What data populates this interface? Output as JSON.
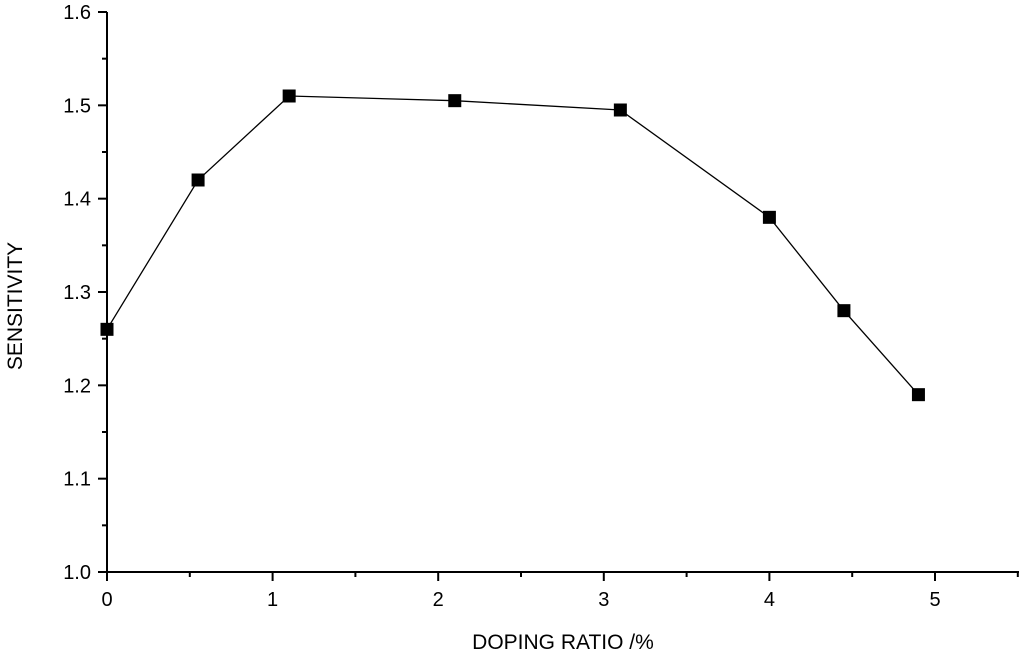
{
  "chart_data": {
    "type": "line",
    "title": "",
    "xlabel": "DOPING RATIO /%",
    "ylabel": "SENSITIVITY",
    "xlim": [
      0,
      5.5
    ],
    "ylim": [
      1.0,
      1.6
    ],
    "x_ticks": [
      0,
      1,
      2,
      3,
      4,
      5
    ],
    "x_tick_labels": [
      "0",
      "1",
      "2",
      "3",
      "4",
      "5"
    ],
    "y_ticks": [
      1.0,
      1.1,
      1.2,
      1.3,
      1.4,
      1.5,
      1.6
    ],
    "y_tick_labels": [
      "1.0",
      "1.1",
      "1.2",
      "1.3",
      "1.4",
      "1.5",
      "1.6"
    ],
    "grid": false,
    "legend": "none",
    "marker": "square",
    "color": "#000000",
    "series": [
      {
        "x": [
          0,
          0.55,
          1.1,
          2.1,
          3.1,
          4.0,
          4.45,
          4.9
        ],
        "y": [
          1.26,
          1.42,
          1.51,
          1.505,
          1.495,
          1.38,
          1.28,
          1.19
        ]
      }
    ]
  }
}
